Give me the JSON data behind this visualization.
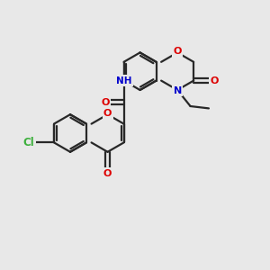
{
  "bg": "#e8e8e8",
  "bond_color": "#282828",
  "red": "#dd0000",
  "blue": "#0000cc",
  "green": "#3db03d",
  "figsize": [
    3.0,
    3.0
  ],
  "dpi": 100
}
